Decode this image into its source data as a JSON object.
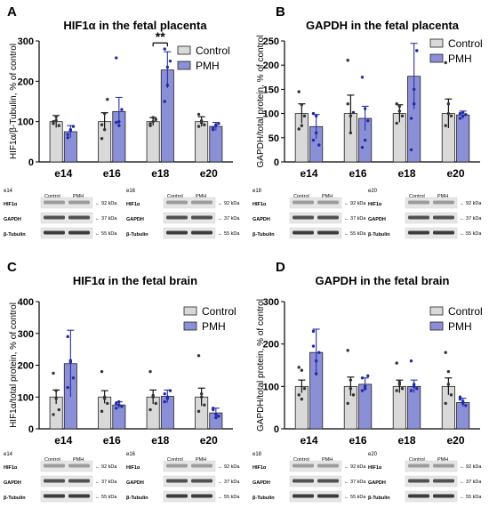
{
  "chart_data": [
    {
      "type": "bar",
      "panel_label": "A",
      "title": "HIF1α in the fetal placenta",
      "ylabel": "HIF1α/β-Tubulin, % of control",
      "xlabel": "",
      "categories": [
        "e14",
        "e16",
        "e18",
        "e20"
      ],
      "ylim": [
        0,
        300
      ],
      "yticks": [
        0,
        100,
        200,
        300
      ],
      "legend_position": "top-right",
      "series": [
        {
          "name": "Control",
          "color": "#d9d9d9",
          "values": [
            100,
            100,
            100,
            100
          ],
          "errors": [
            15,
            22,
            10,
            12
          ],
          "points": [
            [
              100,
              112,
              90,
              95,
              103
            ],
            [
              92,
              120,
              155,
              58,
              80
            ],
            [
              95,
              100,
              105,
              90,
              110
            ],
            [
              118,
              102,
              92,
              88,
              97
            ]
          ]
        },
        {
          "name": "PMH",
          "color": "#8b8fd6",
          "values": [
            75,
            125,
            228,
            88
          ],
          "errors": [
            15,
            35,
            45,
            10
          ],
          "points": [
            [
              68,
              80,
              88,
              60,
              78
            ],
            [
              98,
              100,
              130,
              258,
              90
            ],
            [
              150,
              190,
              250,
              280,
              235
            ],
            [
              80,
              92,
              95,
              85,
              90
            ]
          ]
        }
      ],
      "annotations": [
        {
          "text": "**",
          "category": "e18"
        }
      ]
    },
    {
      "type": "bar",
      "panel_label": "B",
      "title": "GAPDH in the fetal placenta",
      "ylabel": "GAPDH/total protein, % of control",
      "xlabel": "",
      "categories": [
        "e14",
        "e16",
        "e18",
        "e20"
      ],
      "ylim": [
        0,
        250
      ],
      "yticks": [
        0,
        50,
        100,
        150,
        200,
        250
      ],
      "legend_position": "top-right",
      "series": [
        {
          "name": "Control",
          "color": "#d9d9d9",
          "values": [
            100,
            100,
            100,
            100
          ],
          "errors": [
            20,
            38,
            18,
            30
          ],
          "points": [
            [
              145,
              118,
              95,
              68,
              75
            ],
            [
              210,
              60,
              102,
              120,
              95
            ],
            [
              120,
              115,
              95,
              80,
              105
            ],
            [
              205,
              100,
              95,
              75,
              120
            ]
          ]
        },
        {
          "name": "PMH",
          "color": "#8b8fd6",
          "values": [
            73,
            90,
            177,
            97
          ],
          "errors": [
            25,
            25,
            68,
            8
          ],
          "points": [
            [
              100,
              60,
              35,
              45,
              95
            ],
            [
              175,
              110,
              85,
              30,
              45
            ],
            [
              90,
              150,
              230,
              25,
              120
            ],
            [
              100,
              95,
              98,
              90,
              102
            ]
          ]
        }
      ]
    },
    {
      "type": "bar",
      "panel_label": "C",
      "title": "HIF1α in the fetal brain",
      "ylabel": "HIF1α/total protein, % of control",
      "xlabel": "",
      "categories": [
        "e14",
        "e16",
        "e18",
        "e20"
      ],
      "ylim": [
        0,
        400
      ],
      "yticks": [
        0,
        100,
        200,
        300,
        400
      ],
      "legend_position": "top-right",
      "series": [
        {
          "name": "Control",
          "color": "#d9d9d9",
          "values": [
            100,
            100,
            100,
            100
          ],
          "errors": [
            22,
            20,
            22,
            28
          ],
          "points": [
            [
              175,
              95,
              60,
              45,
              120
            ],
            [
              180,
              95,
              80,
              55,
              100
            ],
            [
              180,
              100,
              80,
              60,
              105
            ],
            [
              230,
              110,
              75,
              55,
              100
            ]
          ]
        },
        {
          "name": "PMH",
          "color": "#8b8fd6",
          "values": [
            205,
            75,
            102,
            50
          ],
          "errors": [
            105,
            10,
            20,
            15
          ],
          "points": [
            [
              290,
              210,
              160,
              130,
              215
            ],
            [
              80,
              85,
              70,
              65,
              75
            ],
            [
              110,
              95,
              120,
              85,
              100
            ],
            [
              60,
              35,
              40,
              65,
              45
            ]
          ]
        }
      ]
    },
    {
      "type": "bar",
      "panel_label": "D",
      "title": "GAPDH in the fetal brain",
      "ylabel": "GAPDH/total protein, % of control",
      "xlabel": "",
      "categories": [
        "e14",
        "e16",
        "e18",
        "e20"
      ],
      "ylim": [
        0,
        300
      ],
      "yticks": [
        0,
        100,
        200,
        300
      ],
      "legend_position": "top-right",
      "series": [
        {
          "name": "Control",
          "color": "#d9d9d9",
          "values": [
            100,
            100,
            100,
            100
          ],
          "errors": [
            15,
            22,
            15,
            20
          ],
          "points": [
            [
              145,
              138,
              95,
              80,
              70
            ],
            [
              185,
              95,
              80,
              60,
              115
            ],
            [
              155,
              105,
              95,
              90,
              110
            ],
            [
              180,
              135,
              80,
              60,
              105
            ]
          ]
        },
        {
          "name": "PMH",
          "color": "#8b8fd6",
          "values": [
            180,
            105,
            100,
            62
          ],
          "errors": [
            55,
            15,
            15,
            10
          ],
          "points": [
            [
              195,
              160,
              180,
              230,
              130
            ],
            [
              120,
              100,
              125,
              90,
              95
            ],
            [
              160,
              100,
              95,
              90,
              105
            ],
            [
              75,
              60,
              55,
              70,
              65
            ]
          ]
        }
      ]
    }
  ],
  "blots": {
    "control_label": "Control",
    "pmh_label": "PMH",
    "kda_92": "← 92 kDa",
    "kda_37": "← 37 kDa",
    "kda_55": "← 55 kDa",
    "row_hif": "HIF1α",
    "row_gapdh": "GAPDH",
    "row_tubulin": "β-Tubulin",
    "placenta": [
      {
        "stage": "e14",
        "row_hif": "HIF1α"
      },
      {
        "stage": "e16",
        "row_hif": "HIF1α"
      },
      {
        "stage": "e18",
        "row_hif": "HIF1α"
      },
      {
        "stage": "e20",
        "row_hif": "HIF1α"
      }
    ],
    "brain": [
      {
        "stage": "e14",
        "row_hif": "HIF1α"
      },
      {
        "stage": "e16",
        "row_hif": "HIF1α"
      },
      {
        "stage": "e18",
        "row_hif": "HIF1α"
      },
      {
        "stage": "e20",
        "row_hif": "HIF1α"
      }
    ]
  }
}
